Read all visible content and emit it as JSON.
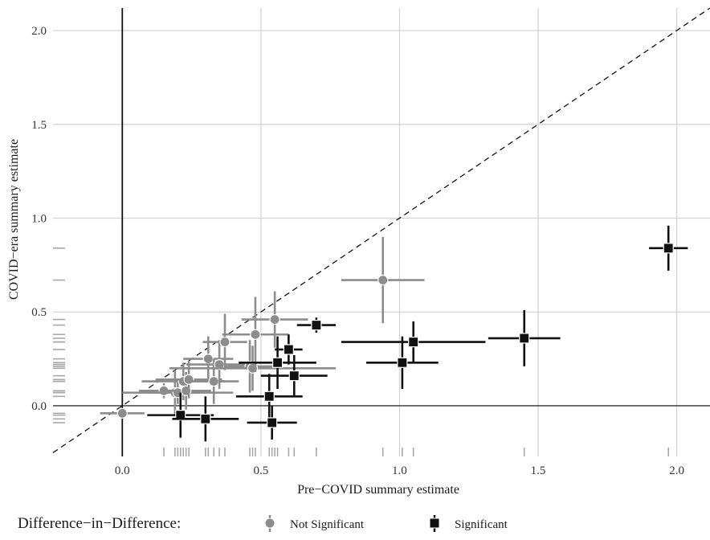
{
  "chart_data": {
    "type": "scatter",
    "xlabel": "Pre−COVID summary estimate",
    "ylabel": "COVID−era summary estimate",
    "xlim": [
      -0.25,
      2.12
    ],
    "ylim": [
      -0.27,
      2.12
    ],
    "x_ticks": [
      "0.0",
      "0.5",
      "1.0",
      "1.5",
      "2.0"
    ],
    "x_tick_values": [
      0,
      0.5,
      1.0,
      1.5,
      2.0
    ],
    "y_ticks": [
      "0.0",
      "0.5",
      "1.0",
      "1.5",
      "2.0"
    ],
    "y_tick_values": [
      0,
      0.5,
      1.0,
      1.5,
      2.0
    ],
    "grid": true,
    "reference_line": "y = x (dashed)",
    "reference_axes": "x = 0 and y = 0 (solid)",
    "rug": "x values along bottom, y values along left",
    "legend": {
      "title": "Difference−in−Difference:",
      "position": "bottom",
      "entries": [
        {
          "label": "Not Significant",
          "color": "#8c8c8c",
          "marker": "circle"
        },
        {
          "label": "Significant",
          "color": "#111111",
          "marker": "square"
        }
      ]
    },
    "series": [
      {
        "name": "Not Significant",
        "color": "#8c8c8c",
        "marker": "circle",
        "points": [
          {
            "x": 0.0,
            "y": -0.04,
            "xerr": 0.08,
            "yerr": 0.02
          },
          {
            "x": 0.15,
            "y": 0.08,
            "xerr": 0.09,
            "yerr": 0.04
          },
          {
            "x": 0.19,
            "y": 0.07,
            "xerr": 0.09,
            "yerr": 0.12
          },
          {
            "x": 0.2,
            "y": 0.07,
            "xerr": 0.2,
            "yerr": 0.06
          },
          {
            "x": 0.22,
            "y": 0.13,
            "xerr": 0.15,
            "yerr": 0.1
          },
          {
            "x": 0.23,
            "y": 0.08,
            "xerr": 0.09,
            "yerr": 0.1
          },
          {
            "x": 0.24,
            "y": 0.14,
            "xerr": 0.12,
            "yerr": 0.1
          },
          {
            "x": 0.31,
            "y": 0.25,
            "xerr": 0.09,
            "yerr": 0.12
          },
          {
            "x": 0.33,
            "y": 0.13,
            "xerr": 0.09,
            "yerr": 0.12
          },
          {
            "x": 0.35,
            "y": 0.22,
            "xerr": 0.12,
            "yerr": 0.13
          },
          {
            "x": 0.37,
            "y": 0.34,
            "xerr": 0.08,
            "yerr": 0.15
          },
          {
            "x": 0.46,
            "y": 0.21,
            "xerr": 0.09,
            "yerr": 0.14
          },
          {
            "x": 0.47,
            "y": 0.2,
            "xerr": 0.3,
            "yerr": 0.12
          },
          {
            "x": 0.48,
            "y": 0.38,
            "xerr": 0.12,
            "yerr": 0.2
          },
          {
            "x": 0.55,
            "y": 0.46,
            "xerr": 0.12,
            "yerr": 0.15
          },
          {
            "x": 0.94,
            "y": 0.67,
            "xerr": 0.15,
            "yerr": 0.23
          }
        ]
      },
      {
        "name": "Significant",
        "color": "#111111",
        "marker": "square",
        "points": [
          {
            "x": 0.21,
            "y": -0.05,
            "xerr": 0.12,
            "yerr": 0.12
          },
          {
            "x": 0.3,
            "y": -0.07,
            "xerr": 0.12,
            "yerr": 0.12
          },
          {
            "x": 0.53,
            "y": 0.05,
            "xerr": 0.12,
            "yerr": 0.12
          },
          {
            "x": 0.54,
            "y": -0.09,
            "xerr": 0.09,
            "yerr": 0.09
          },
          {
            "x": 0.56,
            "y": 0.23,
            "xerr": 0.14,
            "yerr": 0.14
          },
          {
            "x": 0.6,
            "y": 0.3,
            "xerr": 0.05,
            "yerr": 0.08
          },
          {
            "x": 0.62,
            "y": 0.16,
            "xerr": 0.12,
            "yerr": 0.11
          },
          {
            "x": 0.7,
            "y": 0.43,
            "xerr": 0.07,
            "yerr": 0.04
          },
          {
            "x": 1.01,
            "y": 0.23,
            "xerr": 0.13,
            "yerr": 0.14
          },
          {
            "x": 1.05,
            "y": 0.34,
            "xerr": 0.26,
            "yerr": 0.11
          },
          {
            "x": 1.45,
            "y": 0.36,
            "xerr": 0.13,
            "yerr": 0.15
          },
          {
            "x": 1.97,
            "y": 0.84,
            "xerr": 0.07,
            "yerr": 0.12
          }
        ]
      }
    ]
  }
}
